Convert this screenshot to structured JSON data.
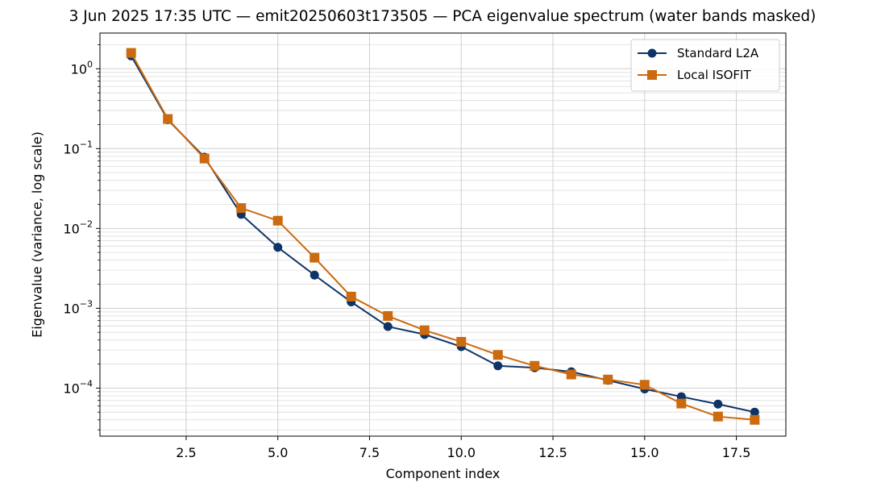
{
  "chart_data": {
    "type": "line",
    "title": "3 Jun 2025 17:35 UTC — emit20250603t173505 — PCA eigenvalue spectrum (water bands masked)",
    "xlabel": "Component index",
    "ylabel": "Eigenvalue (variance, log scale)",
    "xlim": [
      0.15,
      18.85
    ],
    "ylim": [
      2.5e-05,
      2.8
    ],
    "yscale": "log",
    "grid": true,
    "legend_position": "top-right",
    "x_ticks": [
      {
        "value": 2.5,
        "label": "2.5"
      },
      {
        "value": 5.0,
        "label": "5.0"
      },
      {
        "value": 7.5,
        "label": "7.5"
      },
      {
        "value": 10.0,
        "label": "10.0"
      },
      {
        "value": 12.5,
        "label": "12.5"
      },
      {
        "value": 15.0,
        "label": "15.0"
      },
      {
        "value": 17.5,
        "label": "17.5"
      }
    ],
    "y_ticks": [
      {
        "value": 1,
        "base": "10",
        "exp": "0"
      },
      {
        "value": 0.1,
        "base": "10",
        "exp": "−1"
      },
      {
        "value": 0.01,
        "base": "10",
        "exp": "−2"
      },
      {
        "value": 0.001,
        "base": "10",
        "exp": "−3"
      },
      {
        "value": 0.0001,
        "base": "10",
        "exp": "−4"
      }
    ],
    "x": [
      1,
      2,
      3,
      4,
      5,
      6,
      7,
      8,
      9,
      10,
      11,
      12,
      13,
      14,
      15,
      16,
      17,
      18
    ],
    "series": [
      {
        "name": "Standard L2A",
        "color": "#0d3466",
        "marker": "circle",
        "values": [
          1.45,
          0.23,
          0.078,
          0.015,
          0.0058,
          0.0026,
          0.0012,
          0.00059,
          0.00047,
          0.00033,
          0.00019,
          0.00018,
          0.00016,
          0.000125,
          9.75e-05,
          7.8e-05,
          6.3e-05,
          5e-05
        ]
      },
      {
        "name": "Local ISOFIT",
        "color": "#cc6a0f",
        "marker": "square",
        "values": [
          1.58,
          0.235,
          0.075,
          0.018,
          0.0125,
          0.0043,
          0.0014,
          0.0008,
          0.00053,
          0.00038,
          0.00026,
          0.00019,
          0.000148,
          0.000128,
          0.00011,
          6.4e-05,
          4.4e-05,
          4e-05
        ]
      }
    ]
  }
}
